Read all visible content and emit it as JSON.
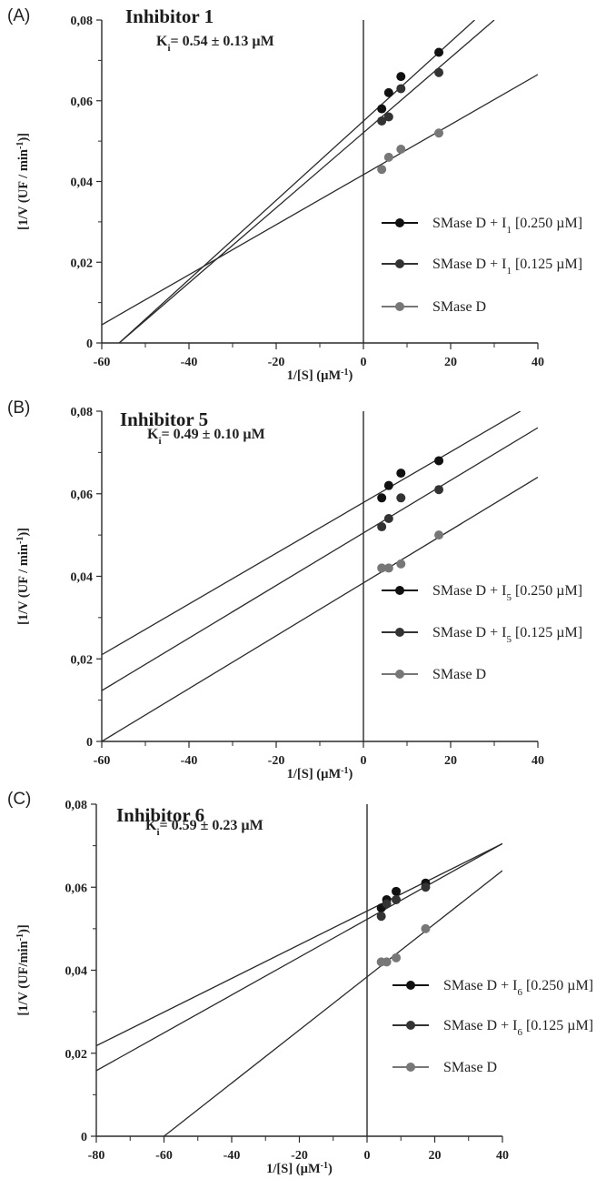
{
  "panels": [
    {
      "letter": "(A)",
      "title": "Inhibitor 1",
      "ki": "Ki= 0.54 ± 0.13 µM",
      "ylabel": "[1/V (UF / min-1)]",
      "xlabel": "1/[S] (µM-1)",
      "legend": [
        "SMase D + I1 [0.250 µM]",
        "SMase D + I1 [0.125 µM]",
        "SMase D"
      ]
    },
    {
      "letter": "(B)",
      "title": "Inhibitor 5",
      "ki": "Ki= 0.49 ± 0.10 µM",
      "ylabel": "[1/V (UF / min-1)]",
      "xlabel": "1/[S] (µM-1)",
      "legend": [
        "SMase D + I5 [0.250 µM]",
        "SMase D + I5 [0.125 µM]",
        "SMase D"
      ]
    },
    {
      "letter": "(C)",
      "title": "Inhibitor 6",
      "ki": "Ki= 0.59 ± 0.23 µM",
      "ylabel": "[1/V (UF/min-1)]",
      "xlabel": "1/[S] (µM-1)",
      "legend": [
        "SMase D + I6 [0.250 µM]",
        "SMase D + I6 [0.125 µM]",
        "SMase D"
      ]
    }
  ],
  "colors": {
    "series1": "#111111",
    "series2": "#333333",
    "series3": "#777777",
    "line": "#2a2a2a"
  },
  "chart_data": [
    {
      "type": "scatter",
      "title": "Inhibitor 1",
      "xlabel": "1/[S] (µM-1)",
      "ylabel": "[1/V (UF / min-1)]",
      "xlim": [
        -60,
        40
      ],
      "ylim": [
        0,
        0.08
      ],
      "xticks": [
        -60,
        -40,
        -20,
        0,
        20,
        40
      ],
      "yticks": [
        0,
        0.02,
        0.04,
        0.06,
        0.08
      ],
      "xtick_labels": [
        "-60",
        "-40",
        "-20",
        "0",
        "20",
        "40"
      ],
      "ytick_labels": [
        "0",
        "0,02",
        "0,04",
        "0,06",
        "0,08"
      ],
      "annotation": "Ki= 0.54 ± 0.13 µM",
      "legend_position": "right",
      "series": [
        {
          "name": "SMase D + I1 [0.250 µM]",
          "x": [
            4.2,
            5.8,
            8.6,
            17.3
          ],
          "y": [
            0.058,
            0.062,
            0.066,
            0.072
          ],
          "line": [
            [
              -56,
              0
            ],
            [
              25.5,
              0.08
            ]
          ]
        },
        {
          "name": "SMase D + I1 [0.125 µM]",
          "x": [
            4.2,
            5.8,
            8.6,
            17.3
          ],
          "y": [
            0.055,
            0.056,
            0.063,
            0.067
          ],
          "line": [
            [
              -56,
              0
            ],
            [
              30,
              0.08
            ]
          ]
        },
        {
          "name": "SMase D",
          "x": [
            4.2,
            5.8,
            8.6,
            17.3
          ],
          "y": [
            0.043,
            0.046,
            0.048,
            0.052
          ],
          "line": [
            [
              -60,
              0.0045
            ],
            [
              40,
              0.0665
            ]
          ]
        }
      ]
    },
    {
      "type": "scatter",
      "title": "Inhibitor 5",
      "xlabel": "1/[S] (µM-1)",
      "ylabel": "[1/V (UF / min-1)]",
      "xlim": [
        -60,
        40
      ],
      "ylim": [
        0,
        0.08
      ],
      "xticks": [
        -60,
        -40,
        -20,
        0,
        20,
        40
      ],
      "yticks": [
        0,
        0.02,
        0.04,
        0.06,
        0.08
      ],
      "xtick_labels": [
        "-60",
        "-40",
        "-20",
        "0",
        "20",
        "40"
      ],
      "ytick_labels": [
        "0",
        "0,02",
        "0,04",
        "0,06",
        "0,08"
      ],
      "annotation": "Ki= 0.49 ± 0.10 µM",
      "legend_position": "right",
      "series": [
        {
          "name": "SMase D + I5 [0.250 µM]",
          "x": [
            4.2,
            5.8,
            8.6,
            17.3
          ],
          "y": [
            0.059,
            0.062,
            0.065,
            0.068
          ],
          "line": [
            [
              -60,
              0.021
            ],
            [
              36,
              0.08
            ]
          ]
        },
        {
          "name": "SMase D + I5 [0.125 µM]",
          "x": [
            4.2,
            5.8,
            8.6,
            17.3
          ],
          "y": [
            0.052,
            0.054,
            0.059,
            0.061
          ],
          "line": [
            [
              -60,
              0.0123
            ],
            [
              40,
              0.076
            ]
          ]
        },
        {
          "name": "SMase D",
          "x": [
            4.2,
            5.8,
            8.6,
            17.3
          ],
          "y": [
            0.042,
            0.042,
            0.043,
            0.05
          ],
          "line": [
            [
              -60,
              0
            ],
            [
              40,
              0.064
            ]
          ]
        }
      ]
    },
    {
      "type": "scatter",
      "title": "Inhibitor 6",
      "xlabel": "1/[S] (µM-1)",
      "ylabel": "[1/V (UF/min-1)]",
      "xlim": [
        -80,
        40
      ],
      "ylim": [
        0,
        0.08
      ],
      "xticks": [
        -80,
        -60,
        -40,
        -20,
        0,
        20,
        40
      ],
      "yticks": [
        0,
        0.02,
        0.04,
        0.06,
        0.08
      ],
      "xtick_labels": [
        "-80",
        "-60",
        "-40",
        "-20",
        "0",
        "20",
        "40"
      ],
      "ytick_labels": [
        "0",
        "0,02",
        "0,04",
        "0,06",
        "0,08"
      ],
      "annotation": "Ki= 0.59 ± 0.23 µM",
      "legend_position": "right",
      "series": [
        {
          "name": "SMase D + I6 [0.250 µM]",
          "x": [
            4.2,
            5.8,
            8.6,
            17.3
          ],
          "y": [
            0.055,
            0.057,
            0.059,
            0.061
          ],
          "line": [
            [
              -80,
              0.0218
            ],
            [
              40,
              0.0705
            ]
          ]
        },
        {
          "name": "SMase D + I6 [0.125 µM]",
          "x": [
            4.2,
            5.8,
            8.6,
            17.3
          ],
          "y": [
            0.053,
            0.056,
            0.057,
            0.06
          ],
          "line": [
            [
              -80,
              0.0158
            ],
            [
              40,
              0.0705
            ]
          ]
        },
        {
          "name": "SMase D",
          "x": [
            4.2,
            5.8,
            8.6,
            17.3
          ],
          "y": [
            0.042,
            0.042,
            0.043,
            0.05
          ],
          "line": [
            [
              -60,
              0
            ],
            [
              40,
              0.064
            ]
          ]
        }
      ]
    }
  ]
}
